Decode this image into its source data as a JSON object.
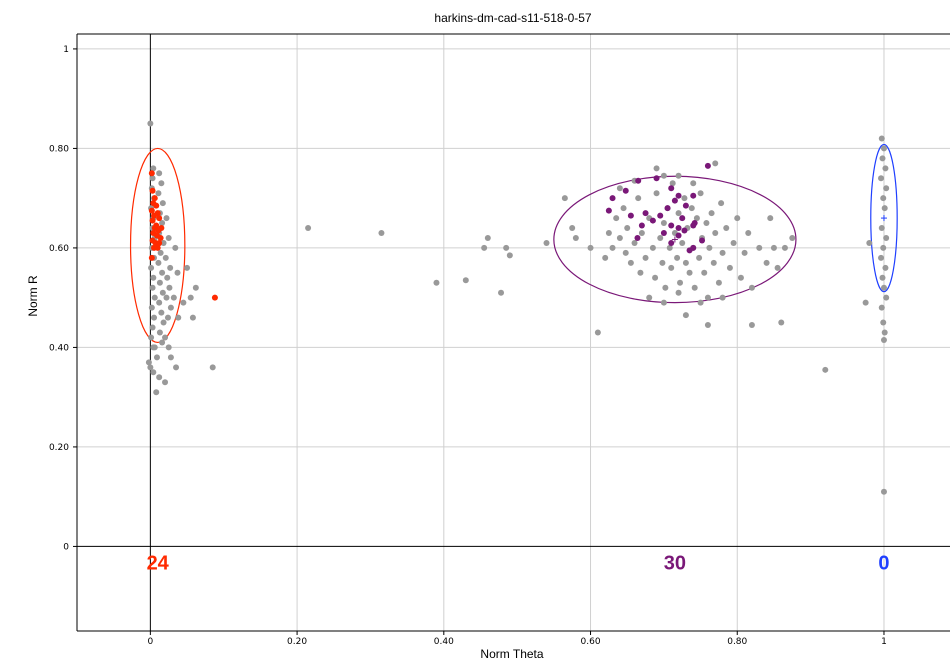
{
  "chart_data": {
    "type": "scatter",
    "title": "harkins-dm-cad-s11-518-0-57",
    "xlabel": "Norm Theta",
    "ylabel": "Norm R",
    "xlim": [
      -0.1,
      1.09
    ],
    "ylim": [
      -0.17,
      1.03
    ],
    "grid": true,
    "x_ticks": [
      {
        "value": 0,
        "label": "0"
      },
      {
        "value": 0.2,
        "label": "0.20"
      },
      {
        "value": 0.4,
        "label": "0.40"
      },
      {
        "value": 0.6,
        "label": "0.60"
      },
      {
        "value": 0.8,
        "label": "0.80"
      },
      {
        "value": 1,
        "label": "1"
      }
    ],
    "y_ticks": [
      {
        "value": 0,
        "label": "0"
      },
      {
        "value": 0.2,
        "label": "0.20"
      },
      {
        "value": 0.4,
        "label": "0.40"
      },
      {
        "value": 0.6,
        "label": "0.60"
      },
      {
        "value": 0.8,
        "label": "0.80"
      },
      {
        "value": 1,
        "label": "1"
      }
    ],
    "colors": {
      "unclassified": "#999999",
      "cluster_red": "#ff2a00",
      "cluster_purple": "#7a1878",
      "cluster_blue": "#1f3fff",
      "axis": "#000000",
      "grid": "#d0d0d0"
    },
    "clusters": [
      {
        "color": "#ff2a00",
        "count_label": "24",
        "center": [
          0.01,
          0.605
        ],
        "radius": [
          0.037,
          0.195
        ],
        "label_x": 0.01
      },
      {
        "color": "#7a1878",
        "count_label": "30",
        "center": [
          0.715,
          0.617
        ],
        "radius": [
          0.165,
          0.127
        ],
        "label_x": 0.715
      },
      {
        "color": "#1f3fff",
        "count_label": "0",
        "center": [
          1.0,
          0.66
        ],
        "radius": [
          0.018,
          0.148
        ],
        "label_x": 1.0
      }
    ],
    "series": [
      {
        "color": "#999999",
        "points": [
          [
            0.0,
            0.85
          ],
          [
            0.004,
            0.76
          ],
          [
            0.003,
            0.74
          ],
          [
            0.002,
            0.72
          ],
          [
            0.005,
            0.7
          ],
          [
            0.001,
            0.68
          ],
          [
            0.004,
            0.66
          ],
          [
            0.003,
            0.64
          ],
          [
            0.006,
            0.62
          ],
          [
            0.002,
            0.6
          ],
          [
            0.005,
            0.58
          ],
          [
            0.001,
            0.56
          ],
          [
            0.004,
            0.54
          ],
          [
            0.003,
            0.52
          ],
          [
            0.006,
            0.5
          ],
          [
            0.002,
            0.48
          ],
          [
            0.005,
            0.46
          ],
          [
            0.003,
            0.44
          ],
          [
            0.001,
            0.42
          ],
          [
            0.004,
            0.4
          ],
          [
            0.012,
            0.75
          ],
          [
            0.015,
            0.73
          ],
          [
            0.011,
            0.71
          ],
          [
            0.017,
            0.69
          ],
          [
            0.013,
            0.67
          ],
          [
            0.016,
            0.65
          ],
          [
            0.012,
            0.63
          ],
          [
            0.018,
            0.61
          ],
          [
            0.014,
            0.59
          ],
          [
            0.011,
            0.57
          ],
          [
            0.016,
            0.55
          ],
          [
            0.013,
            0.53
          ],
          [
            0.017,
            0.51
          ],
          [
            0.012,
            0.49
          ],
          [
            0.015,
            0.47
          ],
          [
            0.018,
            0.45
          ],
          [
            0.013,
            0.43
          ],
          [
            0.016,
            0.41
          ],
          [
            0.022,
            0.66
          ],
          [
            0.025,
            0.62
          ],
          [
            0.021,
            0.58
          ],
          [
            0.027,
            0.56
          ],
          [
            0.023,
            0.54
          ],
          [
            0.026,
            0.52
          ],
          [
            0.022,
            0.5
          ],
          [
            0.028,
            0.48
          ],
          [
            0.024,
            0.46
          ],
          [
            0.02,
            0.42
          ],
          [
            0.025,
            0.4
          ],
          [
            0.034,
            0.6
          ],
          [
            0.037,
            0.55
          ],
          [
            0.032,
            0.5
          ],
          [
            0.038,
            0.46
          ],
          [
            0.045,
            0.49
          ],
          [
            0.05,
            0.56
          ],
          [
            0.055,
            0.5
          ],
          [
            0.058,
            0.46
          ],
          [
            0.062,
            0.52
          ],
          [
            0.028,
            0.38
          ],
          [
            0.035,
            0.36
          ],
          [
            -0.002,
            0.37
          ],
          [
            0.0,
            0.36
          ],
          [
            0.004,
            0.35
          ],
          [
            0.012,
            0.34
          ],
          [
            0.008,
            0.31
          ],
          [
            0.02,
            0.33
          ],
          [
            0.085,
            0.36
          ],
          [
            0.006,
            0.4
          ],
          [
            0.009,
            0.38
          ],
          [
            0.215,
            0.64
          ],
          [
            0.315,
            0.63
          ],
          [
            0.39,
            0.53
          ],
          [
            0.43,
            0.535
          ],
          [
            0.455,
            0.6
          ],
          [
            0.46,
            0.62
          ],
          [
            0.478,
            0.51
          ],
          [
            0.485,
            0.6
          ],
          [
            0.49,
            0.585
          ],
          [
            0.54,
            0.61
          ],
          [
            0.565,
            0.7
          ],
          [
            0.575,
            0.64
          ],
          [
            0.58,
            0.62
          ],
          [
            0.61,
            0.43
          ],
          [
            0.6,
            0.6
          ],
          [
            0.62,
            0.58
          ],
          [
            0.625,
            0.63
          ],
          [
            0.63,
            0.6
          ],
          [
            0.635,
            0.66
          ],
          [
            0.64,
            0.62
          ],
          [
            0.645,
            0.68
          ],
          [
            0.648,
            0.59
          ],
          [
            0.65,
            0.64
          ],
          [
            0.655,
            0.57
          ],
          [
            0.66,
            0.61
          ],
          [
            0.665,
            0.7
          ],
          [
            0.668,
            0.55
          ],
          [
            0.67,
            0.63
          ],
          [
            0.675,
            0.58
          ],
          [
            0.68,
            0.66
          ],
          [
            0.685,
            0.6
          ],
          [
            0.688,
            0.54
          ],
          [
            0.69,
            0.71
          ],
          [
            0.695,
            0.62
          ],
          [
            0.698,
            0.57
          ],
          [
            0.7,
            0.65
          ],
          [
            0.702,
            0.52
          ],
          [
            0.705,
            0.68
          ],
          [
            0.708,
            0.6
          ],
          [
            0.71,
            0.56
          ],
          [
            0.712,
            0.73
          ],
          [
            0.715,
            0.63
          ],
          [
            0.718,
            0.58
          ],
          [
            0.72,
            0.67
          ],
          [
            0.722,
            0.53
          ],
          [
            0.725,
            0.61
          ],
          [
            0.728,
            0.7
          ],
          [
            0.73,
            0.57
          ],
          [
            0.732,
            0.64
          ],
          [
            0.735,
            0.55
          ],
          [
            0.738,
            0.68
          ],
          [
            0.74,
            0.6
          ],
          [
            0.742,
            0.52
          ],
          [
            0.745,
            0.66
          ],
          [
            0.748,
            0.58
          ],
          [
            0.75,
            0.71
          ],
          [
            0.752,
            0.62
          ],
          [
            0.755,
            0.55
          ],
          [
            0.758,
            0.65
          ],
          [
            0.76,
            0.5
          ],
          [
            0.762,
            0.6
          ],
          [
            0.765,
            0.67
          ],
          [
            0.768,
            0.57
          ],
          [
            0.77,
            0.63
          ],
          [
            0.775,
            0.53
          ],
          [
            0.778,
            0.69
          ],
          [
            0.78,
            0.59
          ],
          [
            0.785,
            0.64
          ],
          [
            0.79,
            0.56
          ],
          [
            0.795,
            0.61
          ],
          [
            0.8,
            0.66
          ],
          [
            0.805,
            0.54
          ],
          [
            0.81,
            0.59
          ],
          [
            0.815,
            0.63
          ],
          [
            0.82,
            0.52
          ],
          [
            0.83,
            0.6
          ],
          [
            0.84,
            0.57
          ],
          [
            0.845,
            0.66
          ],
          [
            0.85,
            0.6
          ],
          [
            0.86,
            0.45
          ],
          [
            0.865,
            0.6
          ],
          [
            0.875,
            0.62
          ],
          [
            0.855,
            0.56
          ],
          [
            0.76,
            0.445
          ],
          [
            0.73,
            0.465
          ],
          [
            0.82,
            0.445
          ],
          [
            0.69,
            0.76
          ],
          [
            0.72,
            0.745
          ],
          [
            0.74,
            0.73
          ],
          [
            0.77,
            0.77
          ],
          [
            0.64,
            0.72
          ],
          [
            0.66,
            0.735
          ],
          [
            0.7,
            0.745
          ],
          [
            0.68,
            0.5
          ],
          [
            0.7,
            0.49
          ],
          [
            0.72,
            0.51
          ],
          [
            0.75,
            0.49
          ],
          [
            0.78,
            0.5
          ],
          [
            0.997,
            0.82
          ],
          [
            1.0,
            0.8
          ],
          [
            0.998,
            0.78
          ],
          [
            1.002,
            0.76
          ],
          [
            0.996,
            0.74
          ],
          [
            1.003,
            0.72
          ],
          [
            0.999,
            0.7
          ],
          [
            1.001,
            0.68
          ],
          [
            0.997,
            0.64
          ],
          [
            1.003,
            0.62
          ],
          [
            0.999,
            0.6
          ],
          [
            0.996,
            0.58
          ],
          [
            1.002,
            0.56
          ],
          [
            0.998,
            0.54
          ],
          [
            1.0,
            0.52
          ],
          [
            1.003,
            0.5
          ],
          [
            0.997,
            0.48
          ],
          [
            0.999,
            0.45
          ],
          [
            1.001,
            0.43
          ],
          [
            1.0,
            0.415
          ],
          [
            1.0,
            0.11
          ],
          [
            0.975,
            0.49
          ],
          [
            0.98,
            0.61
          ],
          [
            0.92,
            0.355
          ]
        ]
      },
      {
        "color": "#ff2a00",
        "points": [
          [
            0.002,
            0.75
          ],
          [
            0.003,
            0.715
          ],
          [
            0.006,
            0.7
          ],
          [
            0.004,
            0.69
          ],
          [
            0.008,
            0.685
          ],
          [
            0.002,
            0.675
          ],
          [
            0.01,
            0.67
          ],
          [
            0.005,
            0.665
          ],
          [
            0.012,
            0.66
          ],
          [
            0.003,
            0.655
          ],
          [
            0.008,
            0.645
          ],
          [
            0.015,
            0.64
          ],
          [
            0.006,
            0.64
          ],
          [
            0.011,
            0.635
          ],
          [
            0.004,
            0.63
          ],
          [
            0.009,
            0.625
          ],
          [
            0.014,
            0.62
          ],
          [
            0.003,
            0.615
          ],
          [
            0.007,
            0.61
          ],
          [
            0.012,
            0.61
          ],
          [
            0.005,
            0.6
          ],
          [
            0.01,
            0.6
          ],
          [
            0.088,
            0.5
          ],
          [
            0.002,
            0.58
          ]
        ]
      },
      {
        "color": "#7a1878",
        "points": [
          [
            0.648,
            0.715
          ],
          [
            0.665,
            0.735
          ],
          [
            0.69,
            0.74
          ],
          [
            0.71,
            0.72
          ],
          [
            0.74,
            0.705
          ],
          [
            0.76,
            0.765
          ],
          [
            0.72,
            0.705
          ],
          [
            0.715,
            0.695
          ],
          [
            0.705,
            0.68
          ],
          [
            0.73,
            0.685
          ],
          [
            0.695,
            0.665
          ],
          [
            0.725,
            0.66
          ],
          [
            0.685,
            0.655
          ],
          [
            0.742,
            0.65
          ],
          [
            0.71,
            0.645
          ],
          [
            0.675,
            0.67
          ],
          [
            0.655,
            0.665
          ],
          [
            0.625,
            0.675
          ],
          [
            0.67,
            0.645
          ],
          [
            0.728,
            0.635
          ],
          [
            0.7,
            0.63
          ],
          [
            0.752,
            0.615
          ],
          [
            0.71,
            0.61
          ],
          [
            0.74,
            0.6
          ],
          [
            0.735,
            0.595
          ],
          [
            0.72,
            0.625
          ],
          [
            0.664,
            0.62
          ],
          [
            0.74,
            0.645
          ],
          [
            0.63,
            0.7
          ],
          [
            0.72,
            0.64
          ]
        ]
      }
    ]
  }
}
